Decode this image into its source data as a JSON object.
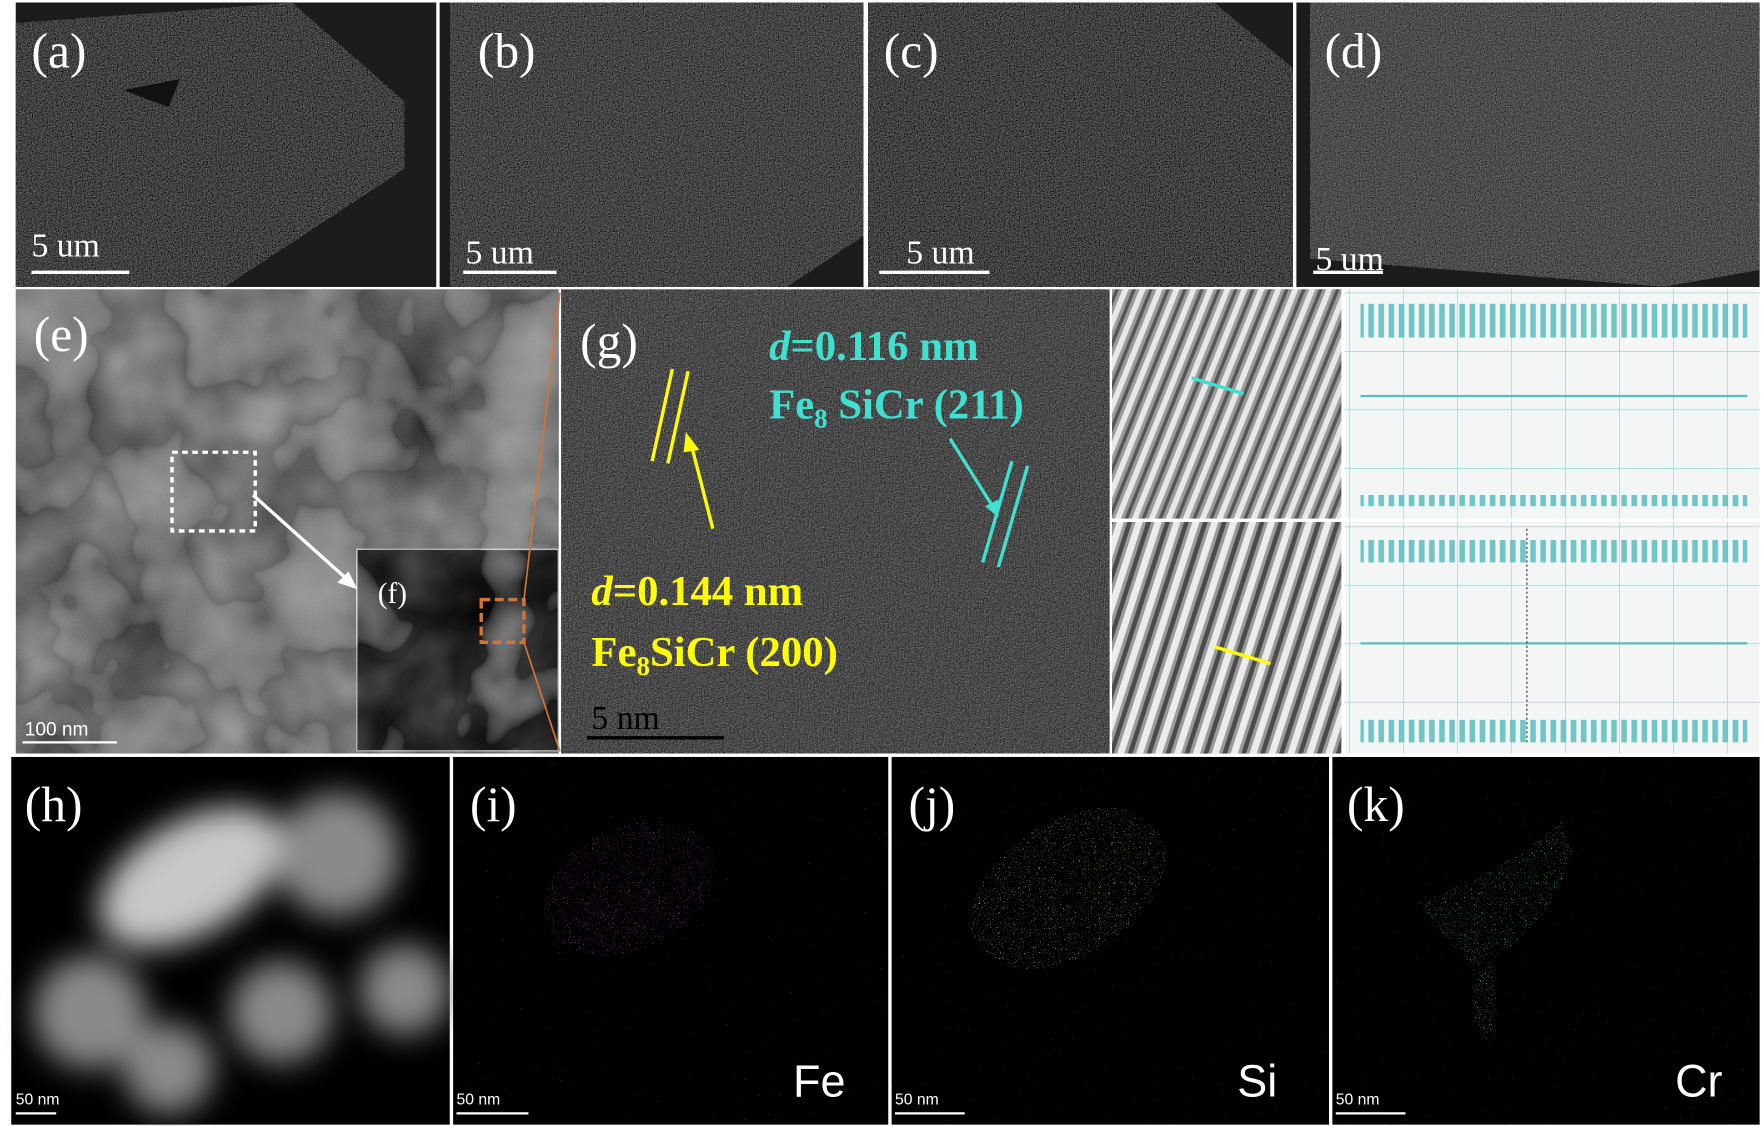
{
  "panels": [
    {
      "label": "(a)",
      "scale_bar": "5 um"
    },
    {
      "label": "(b)",
      "scale_bar": "5 um"
    },
    {
      "label": "(c)",
      "scale_bar": "5 um"
    },
    {
      "label": "(d)",
      "scale_bar": "5 um"
    },
    {
      "label": "(e)",
      "scale_bar": "100 nm"
    },
    {
      "label": "(f)"
    },
    {
      "label": "(g)",
      "scale_bar": "5 nm",
      "lattice_fringes": [
        {
          "d_symbol": "d",
          "spacing": "=0.116 nm",
          "formula_element": "Fe",
          "formula_subscript": "8",
          "formula_rest": " SiCr (211)"
        },
        {
          "d_symbol": "d",
          "spacing": "=0.144 nm",
          "formula_element": "Fe",
          "formula_subscript": "8",
          "formula_rest": "SiCr (200)"
        }
      ]
    },
    {
      "label": "(h)",
      "scale_bar": "50 nm"
    },
    {
      "label": "(i)",
      "scale_bar": "50 nm",
      "element": "Fe"
    },
    {
      "label": "(j)",
      "scale_bar": "50 nm",
      "element": "Si"
    },
    {
      "label": "(k)",
      "scale_bar": "50 nm",
      "element": "Cr"
    }
  ]
}
